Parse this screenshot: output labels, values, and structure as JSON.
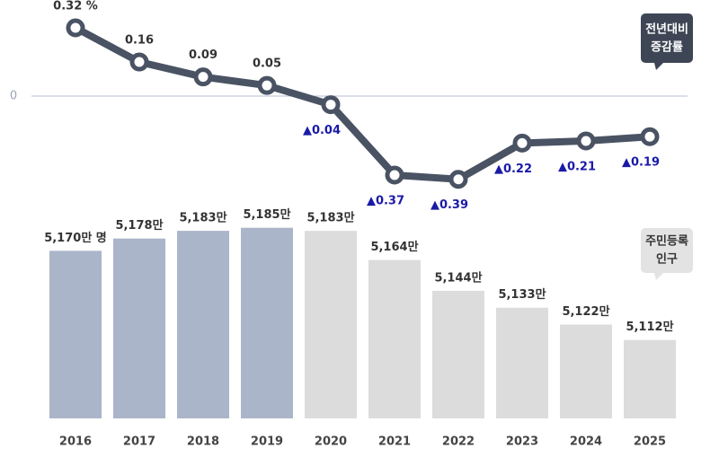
{
  "chart_data": [
    {
      "type": "line",
      "categories": [
        "2016",
        "2017",
        "2018",
        "2019",
        "2020",
        "2021",
        "2022",
        "2023",
        "2024",
        "2025"
      ],
      "values": [
        0.32,
        0.16,
        0.09,
        0.05,
        -0.04,
        -0.37,
        -0.39,
        -0.22,
        -0.21,
        -0.19
      ],
      "value_labels": [
        "0.32 %",
        "0.16",
        "0.09",
        "0.05",
        "▲0.04",
        "▲0.37",
        "▲0.39",
        "▲0.22",
        "▲0.21",
        "▲0.19"
      ],
      "color": "#4a5363",
      "negative_label_color": "#1a1aa8",
      "ylim": [
        -0.45,
        0.4
      ],
      "yticks": [
        0
      ],
      "annotation": [
        "전년대비",
        "증감률"
      ]
    },
    {
      "type": "bar",
      "categories": [
        "2016",
        "2017",
        "2018",
        "2019",
        "2020",
        "2021",
        "2022",
        "2023",
        "2024",
        "2025"
      ],
      "values": [
        5170,
        5178,
        5183,
        5185,
        5183,
        5164,
        5144,
        5133,
        5122,
        5112
      ],
      "value_labels": [
        "5,170만 명",
        "5,178만",
        "5,183만",
        "5,185만",
        "5,183만",
        "5,164만",
        "5,144만",
        "5,133만",
        "5,122만",
        "5,112만"
      ],
      "colors": [
        "#abb5c9",
        "#abb5c9",
        "#abb5c9",
        "#abb5c9",
        "#dcdcdc",
        "#dcdcdc",
        "#dcdcdc",
        "#dcdcdc",
        "#dcdcdc",
        "#dcdcdc"
      ],
      "ylim": [
        5061,
        5200
      ],
      "annotation": [
        "주민등록",
        "인구"
      ]
    }
  ]
}
